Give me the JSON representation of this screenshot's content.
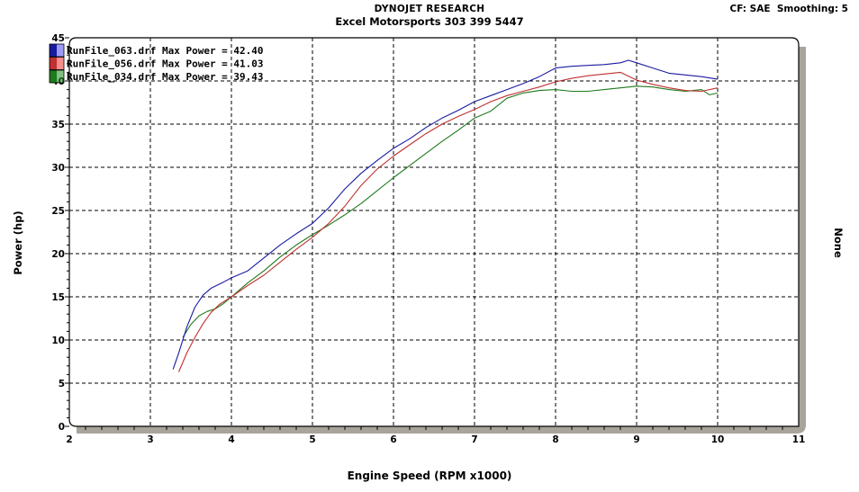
{
  "header": {
    "title": "DYNOJET RESEARCH",
    "subtitle": "Excel Motorsports 303 399 5447",
    "cf_info": "CF: SAE  Smoothing: 5"
  },
  "axes": {
    "xlabel": "Engine Speed (RPM x1000)",
    "ylabel": "Power (hp)",
    "y2label": "None"
  },
  "chart_data": {
    "type": "line",
    "title": "DYNOJET RESEARCH",
    "subtitle": "Excel Motorsports 303 399 5447",
    "annotations": [
      "CF: SAE  Smoothing: 5"
    ],
    "xlabel": "Engine Speed (RPM x1000)",
    "ylabel": "Power (hp)",
    "y2label": "None",
    "xlim": [
      2,
      11
    ],
    "ylim": [
      0,
      45
    ],
    "xticks": [
      2,
      3,
      4,
      5,
      6,
      7,
      8,
      9,
      10,
      11
    ],
    "yticks": [
      0,
      5,
      10,
      15,
      20,
      25,
      30,
      35,
      40,
      45
    ],
    "grid": true,
    "legend_position": "top-left inside",
    "series": [
      {
        "name": "RunFile_063.drf Max Power = 42.40",
        "color": "#1a1aa0",
        "swatch": "#4a4af0",
        "x": [
          3.28,
          3.35,
          3.45,
          3.55,
          3.65,
          3.75,
          3.9,
          4.0,
          4.2,
          4.4,
          4.6,
          4.8,
          5.0,
          5.2,
          5.4,
          5.6,
          5.8,
          6.0,
          6.2,
          6.4,
          6.6,
          6.8,
          7.0,
          7.2,
          7.4,
          7.6,
          7.8,
          8.0,
          8.2,
          8.4,
          8.6,
          8.8,
          8.9,
          9.0,
          9.2,
          9.4,
          9.6,
          9.8,
          10.0
        ],
        "values": [
          6.6,
          8.5,
          11.5,
          13.8,
          15.2,
          16.0,
          16.7,
          17.2,
          18.0,
          19.5,
          21.0,
          22.3,
          23.5,
          25.3,
          27.5,
          29.3,
          30.8,
          32.2,
          33.3,
          34.6,
          35.7,
          36.6,
          37.6,
          38.3,
          39.0,
          39.7,
          40.5,
          41.5,
          41.7,
          41.8,
          41.9,
          42.1,
          42.4,
          42.1,
          41.5,
          40.9,
          40.7,
          40.5,
          40.2
        ]
      },
      {
        "name": "RunFile_056.drf Max Power = 41.03",
        "color": "#c03030",
        "swatch": "#f03030",
        "x": [
          3.35,
          3.45,
          3.55,
          3.65,
          3.75,
          3.85,
          4.0,
          4.2,
          4.4,
          4.6,
          4.8,
          5.0,
          5.2,
          5.4,
          5.6,
          5.8,
          6.0,
          6.2,
          6.4,
          6.6,
          6.8,
          7.0,
          7.2,
          7.4,
          7.6,
          7.8,
          8.0,
          8.2,
          8.4,
          8.6,
          8.8,
          9.0,
          9.2,
          9.4,
          9.6,
          9.8,
          10.0
        ],
        "values": [
          6.3,
          8.5,
          10.3,
          11.9,
          13.2,
          14.1,
          15.0,
          16.3,
          17.5,
          19.0,
          20.5,
          21.9,
          23.5,
          25.5,
          27.9,
          29.8,
          31.3,
          32.6,
          33.9,
          35.0,
          35.9,
          36.7,
          37.6,
          38.3,
          38.8,
          39.3,
          39.9,
          40.3,
          40.6,
          40.8,
          41.0,
          40.1,
          39.6,
          39.2,
          38.9,
          38.8,
          39.2
        ]
      },
      {
        "name": "RunFile_034.drf Max Power = 39.43",
        "color": "#1e7a1e",
        "swatch": "#1e8a1e",
        "x": [
          3.4,
          3.5,
          3.6,
          3.7,
          3.8,
          3.9,
          4.0,
          4.2,
          4.4,
          4.6,
          4.8,
          5.0,
          5.2,
          5.4,
          5.6,
          5.8,
          6.0,
          6.2,
          6.4,
          6.6,
          6.8,
          7.0,
          7.2,
          7.4,
          7.6,
          7.8,
          8.0,
          8.2,
          8.4,
          8.6,
          8.8,
          9.0,
          9.2,
          9.4,
          9.6,
          9.8,
          9.9,
          10.0
        ],
        "values": [
          10.3,
          11.8,
          12.8,
          13.3,
          13.6,
          14.2,
          15.0,
          16.6,
          18.0,
          19.6,
          21.0,
          22.2,
          23.3,
          24.5,
          25.8,
          27.3,
          28.8,
          30.2,
          31.6,
          33.0,
          34.3,
          35.7,
          36.5,
          38.0,
          38.6,
          38.9,
          39.0,
          38.8,
          38.8,
          39.0,
          39.2,
          39.4,
          39.3,
          39.0,
          38.8,
          39.0,
          38.4,
          38.6
        ]
      }
    ]
  }
}
